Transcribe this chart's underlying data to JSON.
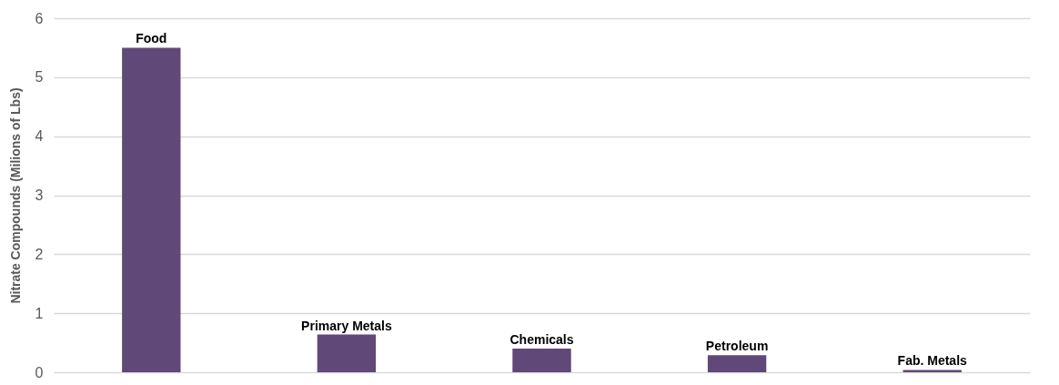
{
  "chart_data": {
    "type": "bar",
    "ylabel": "Nitrate Compounds (Milions of Lbs)",
    "categories": [
      "Food",
      "Primary Metals",
      "Chemicals",
      "Petroleum",
      "Fab. Metals"
    ],
    "values": [
      5.5,
      0.64,
      0.4,
      0.29,
      0.04
    ],
    "color": "#604878",
    "ylim": [
      0,
      6
    ],
    "yticks": [
      0,
      1,
      2,
      3,
      4,
      5,
      6
    ],
    "grid": "y"
  }
}
